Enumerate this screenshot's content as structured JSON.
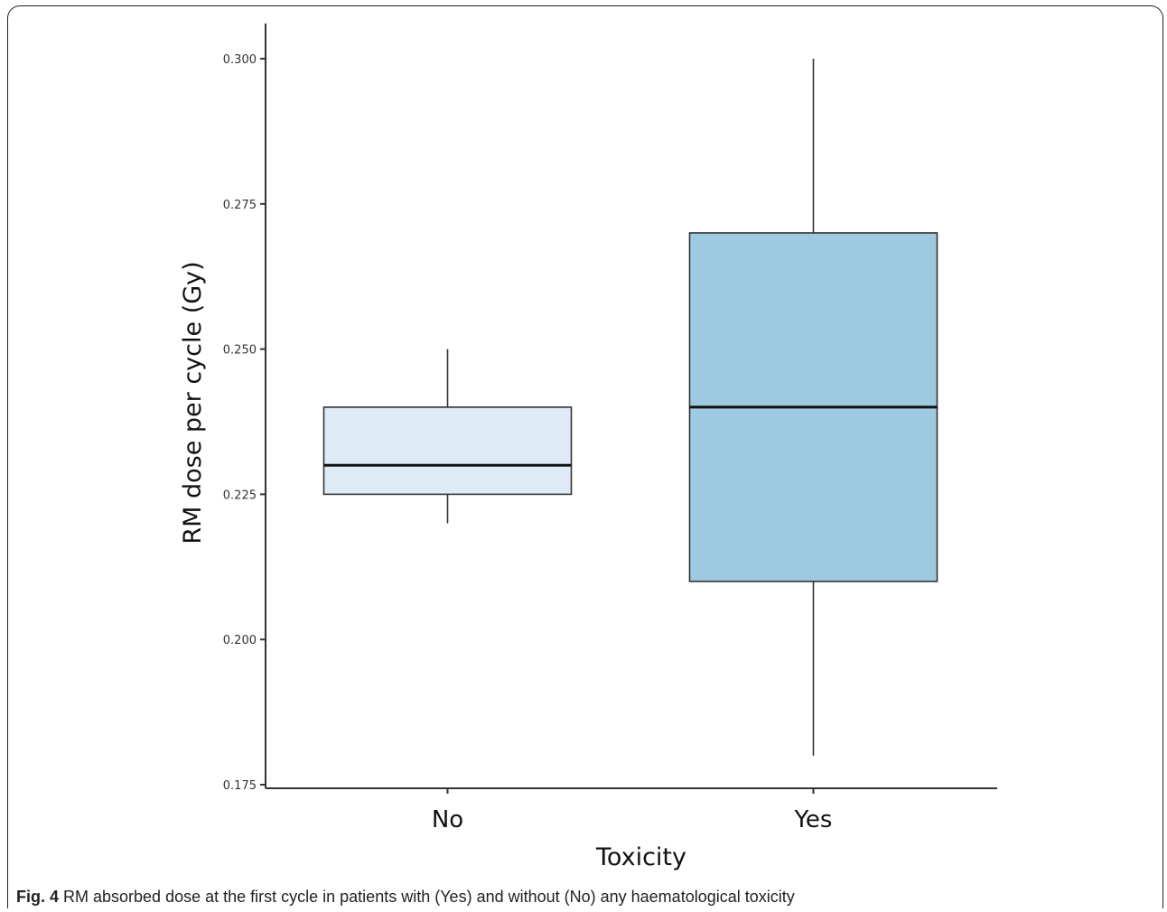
{
  "caption": {
    "label": "Fig. 4",
    "text": " RM absorbed dose at the first cycle in patients with (Yes) and without (No) any haematological toxicity"
  },
  "chart_data": {
    "type": "boxplot",
    "xlabel": "Toxicity",
    "ylabel": "RM dose per cycle (Gy)",
    "ylim": [
      0.175,
      0.306
    ],
    "yticks": [
      0.175,
      0.2,
      0.225,
      0.25,
      0.275,
      0.3
    ],
    "ytick_labels": [
      "0.175",
      "0.200",
      "0.225",
      "0.250",
      "0.275",
      "0.300"
    ],
    "grid": false,
    "legend": "none",
    "categories": [
      "No",
      "Yes"
    ],
    "boxes": [
      {
        "category": "No",
        "min": 0.22,
        "q1": 0.225,
        "median": 0.23,
        "q3": 0.24,
        "max": 0.25,
        "color": "#deeaf6"
      },
      {
        "category": "Yes",
        "min": 0.18,
        "q1": 0.21,
        "median": 0.24,
        "q3": 0.27,
        "max": 0.3,
        "color": "#9ecae1"
      }
    ]
  }
}
